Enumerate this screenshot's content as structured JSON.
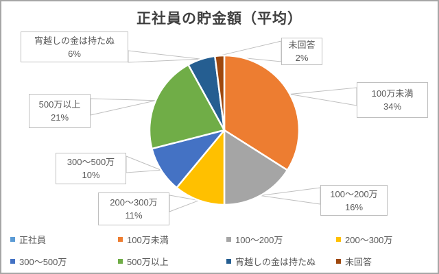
{
  "chart_data": {
    "type": "pie",
    "title": "正社員の貯金額（平均）",
    "categories": [
      "正社員",
      "100万未満",
      "100〜200万",
      "200〜300万",
      "300〜500万",
      "500万以上",
      "宵越しの金は持たぬ",
      "未回答"
    ],
    "values": [
      0,
      34,
      16,
      11,
      10,
      21,
      6,
      2
    ],
    "unit": "%",
    "colors": [
      "#5B9BD5",
      "#ED7D31",
      "#A5A5A5",
      "#FFC000",
      "#4472C4",
      "#70AD47",
      "#255E91",
      "#9E480E"
    ],
    "start_angle_deg": 0,
    "direction": "clockwise",
    "legend_position": "bottom",
    "data_labels": "callouts with category name and percent"
  },
  "callouts": [
    {
      "label": "宵越しの金は持たぬ",
      "value": "6%"
    },
    {
      "label": "未回答",
      "value": "2%"
    },
    {
      "label": "100万未満",
      "value": "34%"
    },
    {
      "label": "100〜200万",
      "value": "16%"
    },
    {
      "label": "200〜300万",
      "value": "11%"
    },
    {
      "label": "300〜500万",
      "value": "10%"
    },
    {
      "label": "500万以上",
      "value": "21%"
    }
  ],
  "style": {
    "title_color": "#404040",
    "text_color": "#595959",
    "callout_border_color": "#BFBFBF",
    "leader_line_color": "#BFBFBF",
    "outer_border_color": "#A6A6A6",
    "slice_separator_color": "#FFFFFF"
  }
}
